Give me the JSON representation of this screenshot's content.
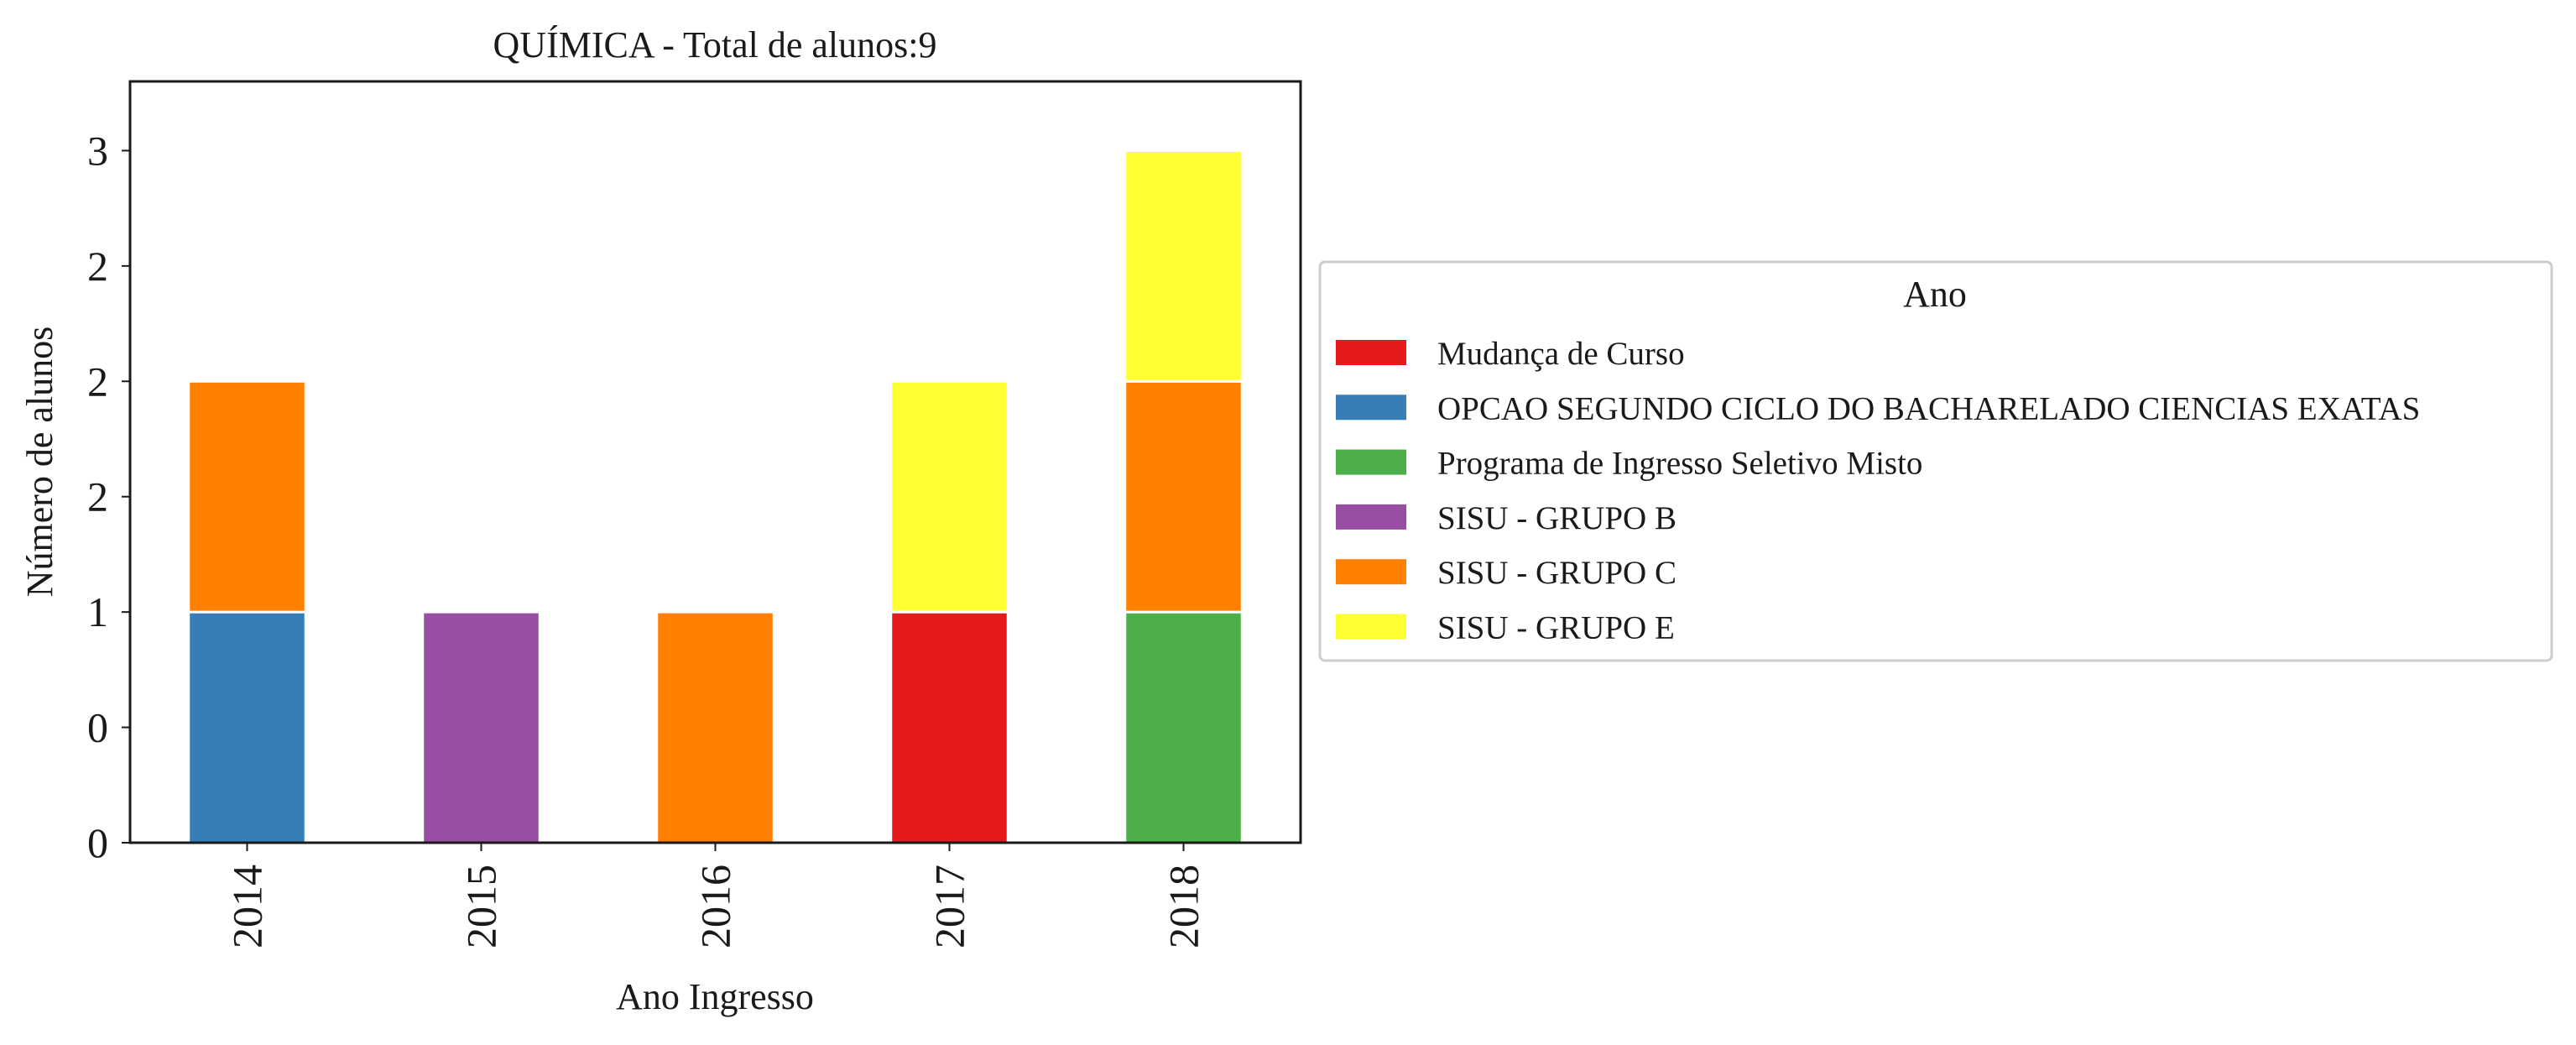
{
  "chart_data": {
    "type": "bar",
    "stacked": true,
    "title": "QUÍMICA - Total de alunos:9",
    "xlabel": "Ano Ingresso",
    "ylabel": "Número de alunos",
    "categories": [
      "2014",
      "2015",
      "2016",
      "2017",
      "2018"
    ],
    "ylim": [
      0,
      3.3
    ],
    "yticks": [
      0,
      0.5,
      1,
      1.5,
      2,
      2.5,
      3
    ],
    "ytick_labels": [
      "0",
      "0",
      "1",
      "2",
      "2",
      "2",
      "3"
    ],
    "grid": false,
    "legend": {
      "title": "Ano",
      "placement": "right"
    },
    "series": [
      {
        "name": "Mudança de Curso",
        "color": "#e41a1c",
        "values": [
          0,
          0,
          0,
          1,
          0
        ]
      },
      {
        "name": "OPCAO SEGUNDO CICLO DO BACHARELADO CIENCIAS EXATAS",
        "color": "#377eb8",
        "values": [
          1,
          0,
          0,
          0,
          0
        ]
      },
      {
        "name": "Programa de Ingresso Seletivo Misto",
        "color": "#4daf4a",
        "values": [
          0,
          0,
          0,
          0,
          1
        ]
      },
      {
        "name": "SISU - GRUPO B",
        "color": "#984ea3",
        "values": [
          0,
          1,
          0,
          0,
          0
        ]
      },
      {
        "name": "SISU - GRUPO C",
        "color": "#ff7f00",
        "values": [
          1,
          0,
          1,
          0,
          1
        ]
      },
      {
        "name": "SISU - GRUPO E",
        "color": "#ffff33",
        "values": [
          0,
          0,
          0,
          1,
          1
        ]
      }
    ]
  }
}
